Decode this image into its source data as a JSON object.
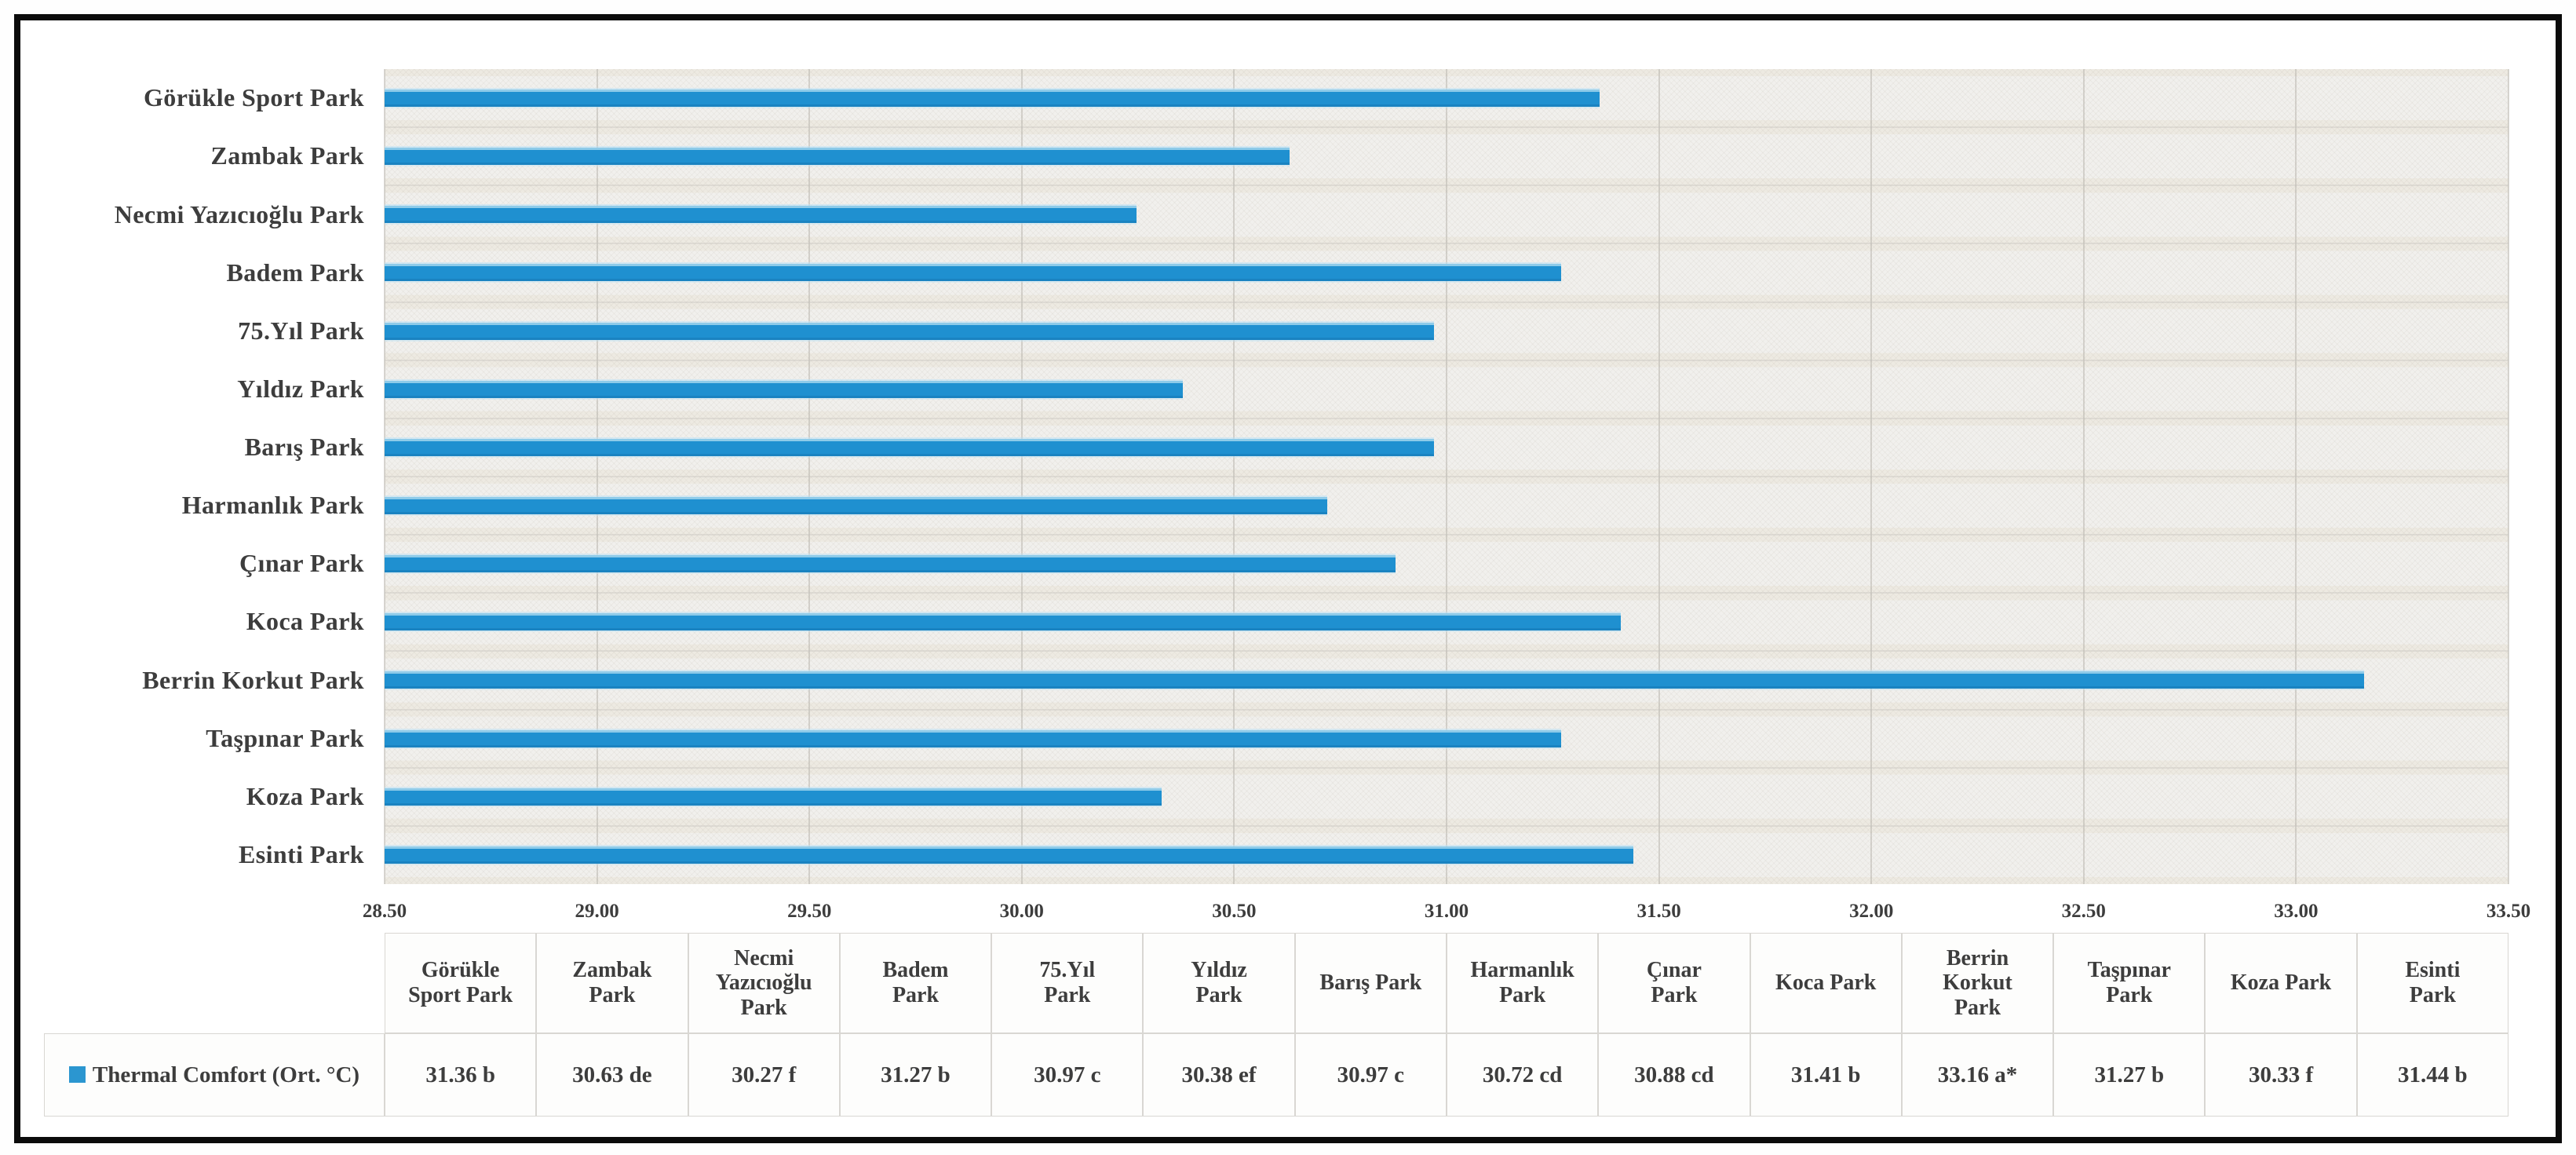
{
  "chart_data": {
    "type": "bar",
    "orientation": "horizontal",
    "title": "",
    "legend": "Thermal Comfort (Ort. °C)",
    "categories": [
      "Görükle Sport Park",
      "Zambak Park",
      "Necmi Yazıcıoğlu Park",
      "Badem Park",
      "75.Yıl Park",
      "Yıldız Park",
      "Barış Park",
      "Harmanlık Park",
      "Çınar Park",
      "Koca Park",
      "Berrin Korkut Park",
      "Taşpınar Park",
      "Koza Park",
      "Esinti Park"
    ],
    "series": [
      {
        "name": "Thermal Comfort (Ort. °C)",
        "values": [
          31.36,
          30.63,
          30.27,
          31.27,
          30.97,
          30.38,
          30.97,
          30.72,
          30.88,
          31.41,
          33.16,
          31.27,
          30.33,
          31.44
        ]
      }
    ],
    "xlim": [
      28.5,
      33.5
    ],
    "x_tick_labels": [
      "28.50",
      "29.00",
      "29.50",
      "30.00",
      "30.50",
      "31.00",
      "31.50",
      "32.00",
      "32.50",
      "33.00",
      "33.50"
    ],
    "grid": true,
    "legend_position": "bottom-left-table",
    "bar_color": "#1f90d0",
    "data_table": {
      "header_lines": [
        [
          "Görükle",
          "Sport Park"
        ],
        [
          "Zambak",
          "Park"
        ],
        [
          "Necmi",
          "Yazıcıoğlu",
          "Park"
        ],
        [
          "Badem",
          "Park"
        ],
        [
          "75.Yıl",
          "Park"
        ],
        [
          "Yıldız",
          "Park"
        ],
        [
          "Barış Park"
        ],
        [
          "Harmanlık",
          "Park"
        ],
        [
          "Çınar",
          "Park"
        ],
        [
          "Koca Park"
        ],
        [
          "Berrin",
          "Korkut",
          "Park"
        ],
        [
          "Taşpınar",
          "Park"
        ],
        [
          "Koza Park"
        ],
        [
          "Esinti",
          "Park"
        ]
      ],
      "row_label": "Thermal Comfort (Ort. °C)",
      "values": [
        "31.36 b",
        "30.63 de",
        "30.27 f",
        "31.27 b",
        "30.97 c",
        "30.38 ef",
        "30.97 c",
        "30.72 cd",
        "30.88 cd",
        "31.41 b",
        "33.16 a*",
        "31.27 b",
        "30.33 f",
        "31.44 b"
      ]
    }
  }
}
